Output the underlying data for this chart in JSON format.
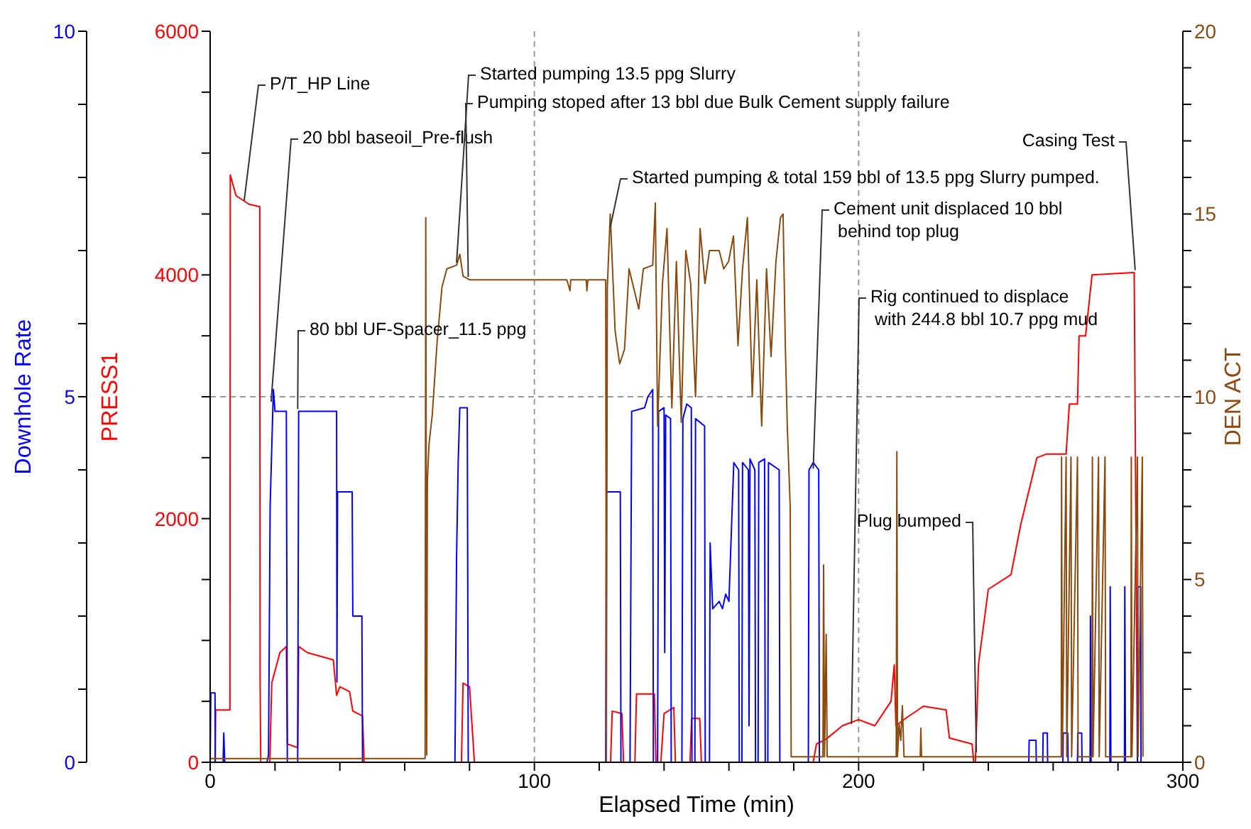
{
  "chart_data": {
    "type": "line",
    "xlabel": "Elapsed Time (min)",
    "ylabel": "PRESS1",
    "y2label": "DEN  ACT",
    "y3label": "Downhole Rate",
    "xlim": [
      0,
      300
    ],
    "xticks": [
      0,
      {
        "value": 20,
        "label": null
      },
      {
        "value": 40,
        "label": null
      },
      {
        "value": 60,
        "label": null
      },
      {
        "value": 80,
        "label": null
      },
      100,
      {
        "value": 120,
        "label": null
      },
      {
        "value": 140,
        "label": null
      },
      {
        "value": 160,
        "label": null
      },
      {
        "value": 180,
        "label": null
      },
      200,
      {
        "value": 220,
        "label": null
      },
      {
        "value": 240,
        "label": null
      },
      {
        "value": 260,
        "label": null
      },
      {
        "value": 280,
        "label": null
      },
      300
    ],
    "ylim": [
      0,
      6000
    ],
    "yticks": [
      0,
      {
        "value": 500,
        "label": null
      },
      {
        "value": 1000,
        "label": null
      },
      {
        "value": 1500,
        "label": null
      },
      2000,
      {
        "value": 2500,
        "label": null
      },
      {
        "value": 3000,
        "label": null
      },
      {
        "value": 3500,
        "label": null
      },
      4000,
      {
        "value": 4500,
        "label": null
      },
      {
        "value": 5000,
        "label": null
      },
      {
        "value": 5500,
        "label": null
      },
      6000
    ],
    "y2lim": [
      0,
      20
    ],
    "y2ticks": [
      0,
      {
        "value": 1,
        "label": null
      },
      {
        "value": 2,
        "label": null
      },
      {
        "value": 3,
        "label": null
      },
      {
        "value": 4,
        "label": null
      },
      5,
      {
        "value": 6,
        "label": null
      },
      {
        "value": 7,
        "label": null
      },
      {
        "value": 8,
        "label": null
      },
      {
        "value": 9,
        "label": null
      },
      10,
      {
        "value": 11,
        "label": null
      },
      {
        "value": 12,
        "label": null
      },
      {
        "value": 13,
        "label": null
      },
      {
        "value": 14,
        "label": null
      },
      15,
      {
        "value": 16,
        "label": null
      },
      {
        "value": 17,
        "label": null
      },
      {
        "value": 18,
        "label": null
      },
      {
        "value": 19,
        "label": null
      },
      20
    ],
    "y3lim": [
      0,
      10
    ],
    "y3ticks": [
      0,
      {
        "value": 1,
        "label": null
      },
      {
        "value": 2,
        "label": null
      },
      {
        "value": 3,
        "label": null
      },
      {
        "value": 4,
        "label": null
      },
      5,
      {
        "value": 6,
        "label": null
      },
      {
        "value": 7,
        "label": null
      },
      {
        "value": 8,
        "label": null
      },
      {
        "value": 9,
        "label": null
      },
      10
    ],
    "grid": true,
    "line_style": "solid",
    "series": [
      {
        "color": "#ff0000",
        "x": [
          0,
          1.5,
          1.7,
          6.1,
          6.2,
          8,
          12,
          15.3,
          15.4,
          15.6,
          18.4,
          19,
          21.5,
          23.5,
          23.8,
          27,
          27.3,
          30,
          38,
          39,
          40,
          43,
          44,
          47,
          47.5,
          77.5,
          78,
          80,
          81.5,
          123.5,
          124,
          127,
          127.5,
          131,
          131.5,
          137,
          137.5,
          139,
          140,
          143,
          143.5,
          148,
          148.5,
          151,
          151.5,
          186,
          187,
          190,
          195,
          200,
          205,
          210,
          211,
          211.5,
          215,
          220,
          227,
          228,
          235,
          235.5,
          236,
          237,
          240,
          247,
          250,
          255,
          258,
          264,
          265,
          267.5,
          268,
          270,
          272,
          285,
          286,
          287
        ],
        "values": [
          0,
          0,
          430,
          430,
          4820,
          4650,
          4580,
          4560,
          700,
          0,
          0,
          650,
          900,
          950,
          150,
          120,
          950,
          900,
          840,
          550,
          620,
          580,
          420,
          380,
          0,
          0,
          650,
          620,
          0,
          0,
          420,
          400,
          0,
          0,
          560,
          560,
          0,
          0,
          400,
          450,
          0,
          0,
          360,
          360,
          0,
          0,
          150,
          190,
          300,
          350,
          300,
          500,
          800,
          300,
          370,
          460,
          430,
          200,
          150,
          0,
          0,
          810,
          1420,
          1540,
          1950,
          2500,
          2530,
          2530,
          2940,
          2940,
          3500,
          3500,
          4000,
          4020,
          0,
          0
        ]
      },
      {
        "color": "#0000ff",
        "axis": "y3",
        "x": [
          0,
          0.2,
          1.5,
          1.6,
          4,
          4.2,
          4.5,
          17.5,
          18,
          18.5,
          19.5,
          20,
          23.5,
          23.8,
          27,
          27.3,
          39,
          39.1,
          39.3,
          43.8,
          44,
          46.8,
          47,
          75.5,
          76,
          76.5,
          77,
          79.3,
          79.6,
          122,
          122.2,
          126.5,
          126.7,
          129.5,
          130,
          134,
          135,
          136.5,
          136.7,
          138,
          138.3,
          140,
          140.2,
          140.5,
          142,
          142.2,
          145.5,
          145.8,
          147,
          148.4,
          148.6,
          149.5,
          149.7,
          152.5,
          152.7,
          154,
          154.2,
          155,
          157,
          158,
          159,
          160,
          161.5,
          163,
          163.2,
          164,
          164.2,
          166,
          166.2,
          166.5,
          168,
          168.2,
          169,
          169.2,
          171,
          171.2,
          172,
          172.2,
          175.5,
          175.7,
          184.5,
          184.7,
          186,
          187.7,
          187.9,
          252.5,
          252.6,
          254.7,
          254.8,
          256.8,
          256.9,
          258.2,
          258.3,
          263,
          263.1,
          264.5,
          264.6,
          267.5,
          267.6,
          268.8,
          268.9,
          271.4,
          271.5,
          271.7,
          277.5,
          277.6,
          277.8,
          282,
          282.1,
          282.3,
          286,
          286.1,
          287,
          287.1,
          288
        ],
        "values": [
          0,
          0.95,
          0.95,
          0,
          0,
          0.4,
          0,
          0,
          0.1,
          3.5,
          5.1,
          4.8,
          4.8,
          0,
          0,
          4.8,
          4.8,
          1.1,
          3.7,
          3.7,
          2.0,
          2.0,
          0,
          0,
          2.8,
          4.1,
          4.85,
          4.85,
          0,
          0,
          3.7,
          3.7,
          0,
          0,
          4.8,
          4.85,
          5.0,
          5.1,
          0,
          0,
          4.8,
          4.85,
          1.5,
          4.75,
          4.7,
          0,
          0,
          4.7,
          4.9,
          4.85,
          0,
          0,
          4.7,
          4.6,
          0,
          0,
          3.0,
          2.1,
          2.2,
          2.1,
          2.3,
          2.2,
          4.1,
          4.0,
          0,
          0,
          4.1,
          4.0,
          0.5,
          4.15,
          4.0,
          0,
          0,
          4.1,
          4.15,
          0,
          0,
          4.1,
          4.0,
          0,
          0,
          4.0,
          4.1,
          4.0,
          0,
          0,
          0.3,
          0.3,
          0,
          0,
          0.4,
          0.4,
          0,
          0,
          0.4,
          0.4,
          0,
          0,
          0.4,
          0.4,
          0,
          0,
          2.0,
          0,
          0,
          2.4,
          0,
          0,
          2.4,
          0,
          0,
          2.4,
          2.4,
          0,
          0
        ]
      },
      {
        "color": "#8b4a0f",
        "axis": "y2",
        "x": [
          0,
          66.3,
          66.5,
          66.8,
          67,
          67.5,
          68.5,
          70,
          71.5,
          73,
          76,
          77,
          78,
          80,
          110,
          111,
          111.2,
          116,
          116.2,
          116.5,
          122,
          122.2,
          122.5,
          123.4,
          124.9,
          126.3,
          127.8,
          129.2,
          132.2,
          133.6,
          136.5,
          137.3,
          138,
          139.5,
          140.9,
          142.4,
          143.8,
          145.3,
          146.7,
          148.2,
          149.7,
          151.1,
          152.6,
          154,
          157,
          158.4,
          159.9,
          161.4,
          162.8,
          164.2,
          165.7,
          167.2,
          168.6,
          170.1,
          171.6,
          173,
          174.5,
          175.9,
          176.7,
          177.4,
          178,
          178.9,
          179.2,
          189,
          189.2,
          189.5,
          190,
          190.3,
          211.6,
          211.8,
          212,
          212.5,
          213,
          213.5,
          214,
          219,
          219.2,
          219.4,
          262.5,
          262.6,
          262.8,
          264,
          264.2,
          265.5,
          265.7,
          267.5,
          267.7,
          272,
          272.1,
          272.3,
          274,
          274.2,
          276,
          276.2,
          284,
          284.1,
          284.3,
          286,
          286.2,
          287.5,
          287.7
        ],
        "values": [
          0.1,
          0.1,
          14.9,
          0.2,
          7.7,
          8.7,
          9.5,
          11.5,
          13.0,
          13.5,
          13.6,
          13.9,
          13.3,
          13.2,
          13.2,
          12.9,
          13.2,
          13.2,
          12.9,
          13.2,
          13.2,
          0,
          13.0,
          15.0,
          11.8,
          10.9,
          11.3,
          13.5,
          12.4,
          13.5,
          13.6,
          15.3,
          9.2,
          13.1,
          14.6,
          9.7,
          13.7,
          9.3,
          14.0,
          13.1,
          10.0,
          14.6,
          13.1,
          14.0,
          14.0,
          13.5,
          13.7,
          14.4,
          11.4,
          13.5,
          14.9,
          10.0,
          13.2,
          9.2,
          13.5,
          11.1,
          13.7,
          14.9,
          15.0,
          11.4,
          9.2,
          7.0,
          0.15,
          0.15,
          5.4,
          0.15,
          3.5,
          0.15,
          0.15,
          8.5,
          0.15,
          1.05,
          0.6,
          1.55,
          0.15,
          0.15,
          0.93,
          0.15,
          0.15,
          8.35,
          0.15,
          8.35,
          0.15,
          8.35,
          0.15,
          8.35,
          0.15,
          0.15,
          8.35,
          0.15,
          8.35,
          0.15,
          8.35,
          0.15,
          0.15,
          8.35,
          0.15,
          8.35,
          0.15,
          8.35,
          0.15
        ]
      }
    ],
    "annotations": [
      {
        "text": "P/T_HP Line",
        "x": 10.5,
        "y": 4610
      },
      {
        "text": "20 bbl baseoil_Pre-flush",
        "x": 18.8,
        "y": 2960
      },
      {
        "text": "80 bbl UF-Spacer_11.5 ppg",
        "x": 27,
        "y": 2900
      },
      {
        "text": "Started pumping 13.5 ppg Slurry",
        "x": 76,
        "y": 4100
      },
      {
        "text": "Pumping stoped after 13 bbl due Bulk Cement supply failure",
        "x": 79.6,
        "y": 3985
      },
      {
        "text": "Started pumping & total 159 bbl of 13.5 ppg Slurry pumped.",
        "x": 123.4,
        "y": 4390
      },
      {
        "text": "Cement unit displaced 10 bbl\nbehind top plug",
        "x": 186,
        "y": 2410
      },
      {
        "text": "Rig continued to displace\nwith 244.8 bbl 10.7 ppg mud",
        "x": 197.8,
        "y": 315
      },
      {
        "text": "Plug bumped",
        "x": 236.3,
        "y": 80
      },
      {
        "text": "Casing Test",
        "x": 285.3,
        "y": 4040
      }
    ]
  }
}
